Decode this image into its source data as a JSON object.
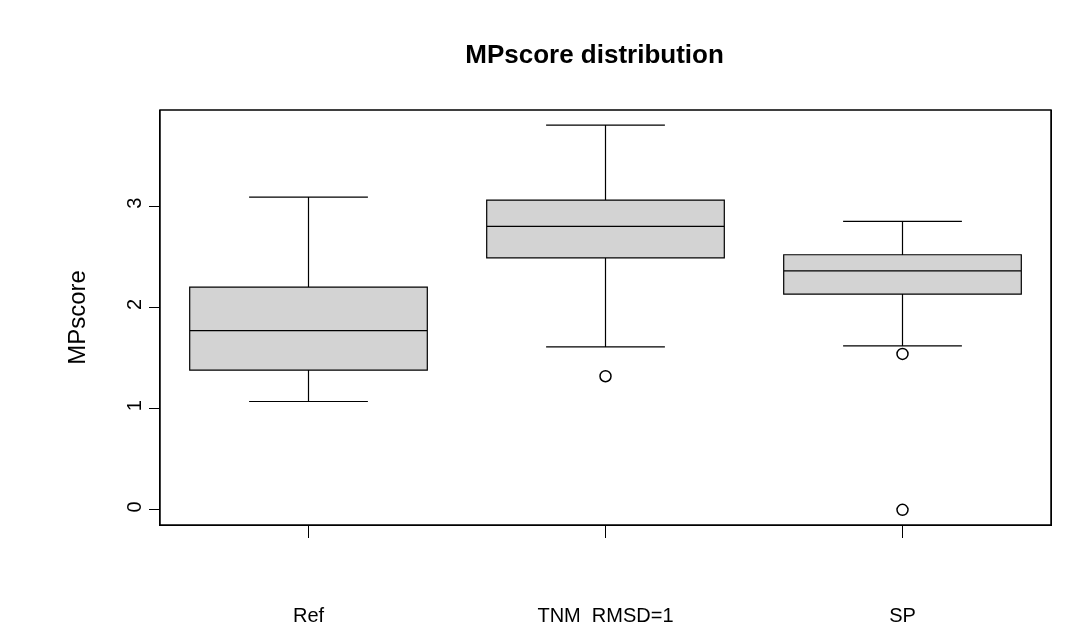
{
  "chart_data": {
    "type": "box",
    "title": "MPscore distribution",
    "ylabel": "MPscore",
    "categories": [
      "Ref",
      "TNM  RMSD=1",
      "SP"
    ],
    "series": [
      {
        "color": "#d3d3d3",
        "boxes": [
          {
            "low": 1.07,
            "q1": 1.38,
            "median": 1.77,
            "q3": 2.2,
            "high": 3.09
          },
          {
            "low": 1.61,
            "q1": 2.49,
            "median": 2.8,
            "q3": 3.06,
            "high": 3.8,
            "outliers": [
              1.32
            ]
          },
          {
            "low": 1.62,
            "q1": 2.13,
            "median": 2.36,
            "q3": 2.52,
            "high": 2.85,
            "outliers": [
              1.54,
              0
            ]
          }
        ]
      }
    ],
    "ylim": [
      -0.15,
      3.95
    ],
    "yticks": [
      0,
      1,
      2,
      3
    ],
    "marker": "circle"
  }
}
